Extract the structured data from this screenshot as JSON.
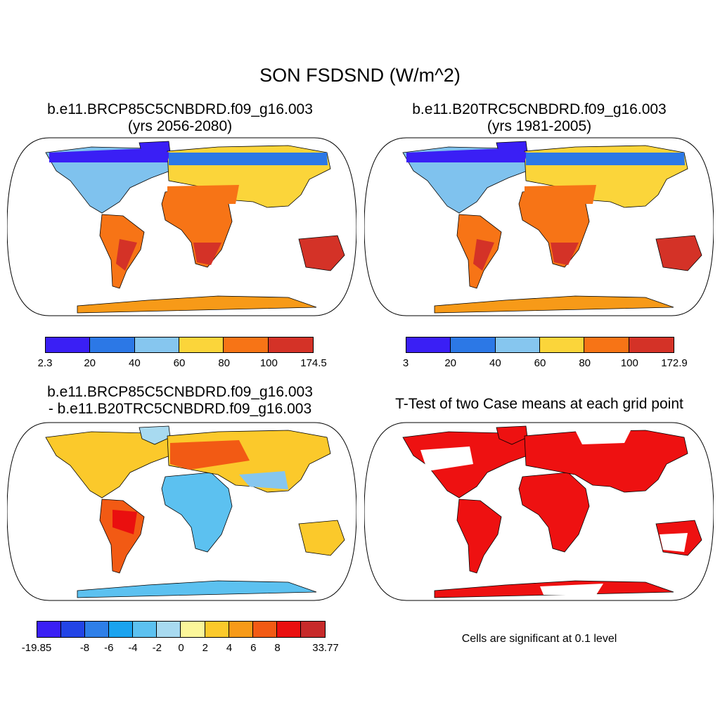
{
  "title": "SON FSDSND (W/m^2)",
  "panels": {
    "future": {
      "title_line1": "b.e11.BRCP85C5CNBDRD.f09_g16.003",
      "title_line2": "(yrs 2056-2080)",
      "colorbar": {
        "colors": [
          "#3a1ff5",
          "#2c78e6",
          "#86c6ef",
          "#fbd53a",
          "#f77416",
          "#d43227"
        ],
        "labels": [
          "2.3",
          "20",
          "40",
          "60",
          "80",
          "100",
          "174.5"
        ]
      }
    },
    "historical": {
      "title_line1": "b.e11.B20TRC5CNBDRD.f09_g16.003",
      "title_line2": "(yrs 1981-2005)",
      "colorbar": {
        "colors": [
          "#3a1ff5",
          "#2c78e6",
          "#86c6ef",
          "#fbd53a",
          "#f77416",
          "#d43227"
        ],
        "labels": [
          "3",
          "20",
          "40",
          "60",
          "80",
          "100",
          "172.9"
        ]
      }
    },
    "difference": {
      "title_line1": "b.e11.BRCP85C5CNBDRD.f09_g16.003",
      "title_line2": "- b.e11.B20TRC5CNBDRD.f09_g16.003",
      "colorbar": {
        "colors": [
          "#3a1ff5",
          "#2244e6",
          "#2e7fe8",
          "#1aa3ef",
          "#5cc1f0",
          "#a8daf0",
          "#fbf69a",
          "#fbc92b",
          "#f79a18",
          "#f25a14",
          "#ea0f0f",
          "#c72a2a"
        ],
        "labels": [
          "-19.85",
          "",
          "-8",
          "-6",
          "-4",
          "-2",
          "0",
          "2",
          "4",
          "6",
          "8",
          "",
          "33.77"
        ]
      }
    },
    "ttest": {
      "title": "T-Test of two Case means at each grid point",
      "note": "Cells are significant at 0.1 level",
      "color": "#ee1111"
    }
  }
}
